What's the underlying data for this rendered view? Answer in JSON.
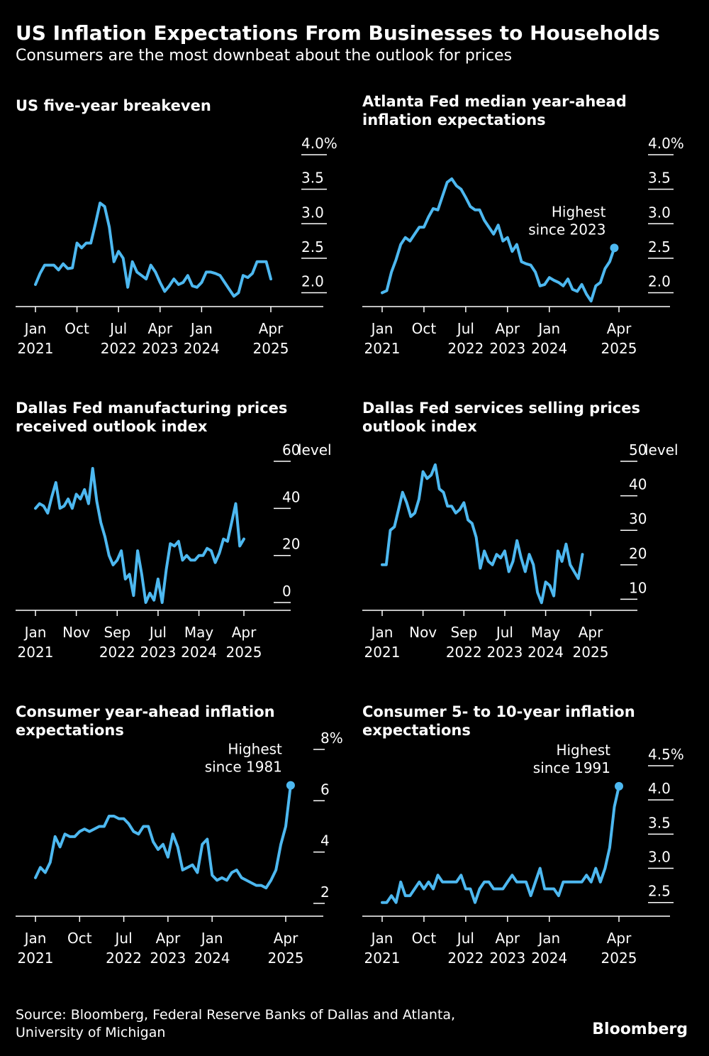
{
  "header": {
    "title": "US Inflation Expectations From Businesses to Households",
    "subtitle": "Consumers are the most downbeat about the outlook for prices"
  },
  "colors": {
    "line": "#4db8f0",
    "background": "#000000",
    "text": "#ffffff",
    "axis": "#ffffff"
  },
  "footer": {
    "source": "Source: Bloomberg, Federal Reserve Banks of Dallas and Atlanta, University of Michigan",
    "logo": "Bloomberg"
  },
  "chart_data": [
    {
      "id": "breakeven",
      "type": "line",
      "title": "US five-year breakeven",
      "ylim": [
        1.8,
        4.0
      ],
      "yticks": [
        {
          "v": 4.0,
          "label": "4.0%"
        },
        {
          "v": 3.5,
          "label": "3.5"
        },
        {
          "v": 3.0,
          "label": "3.0"
        },
        {
          "v": 2.5,
          "label": "2.5"
        },
        {
          "v": 2.0,
          "label": "2.0"
        }
      ],
      "xlim": [
        0,
        51
      ],
      "xticks": [
        {
          "x": 0,
          "label": [
            "Jan",
            "2021"
          ]
        },
        {
          "x": 9,
          "label": [
            "Oct",
            ""
          ]
        },
        {
          "x": 18,
          "label": [
            "Jul",
            "2022"
          ]
        },
        {
          "x": 27,
          "label": [
            "Apr",
            "2023"
          ]
        },
        {
          "x": 36,
          "label": [
            "Jan",
            "2024"
          ]
        },
        {
          "x": 51,
          "label": [
            "Apr",
            "2025"
          ]
        }
      ],
      "values": [
        2.12,
        2.28,
        2.4,
        2.4,
        2.4,
        2.33,
        2.42,
        2.35,
        2.36,
        2.72,
        2.65,
        2.72,
        2.72,
        3.0,
        3.3,
        3.25,
        2.95,
        2.45,
        2.6,
        2.5,
        2.08,
        2.45,
        2.3,
        2.25,
        2.2,
        2.4,
        2.3,
        2.15,
        2.02,
        2.1,
        2.2,
        2.12,
        2.15,
        2.25,
        2.1,
        2.08,
        2.15,
        2.3,
        2.3,
        2.28,
        2.25,
        2.15,
        2.05,
        1.95,
        2.0,
        2.25,
        2.22,
        2.28,
        2.45,
        2.45,
        2.45,
        2.2
      ],
      "highlight": null
    },
    {
      "id": "atlanta",
      "type": "line",
      "title": "Atlanta Fed median year-ahead inflation expectations",
      "ylim": [
        1.8,
        4.0
      ],
      "yticks": [
        {
          "v": 4.0,
          "label": "4.0%"
        },
        {
          "v": 3.5,
          "label": "3.5"
        },
        {
          "v": 3.0,
          "label": "3.0"
        },
        {
          "v": 2.5,
          "label": "2.5"
        },
        {
          "v": 2.0,
          "label": "2.0"
        }
      ],
      "xlim": [
        0,
        51
      ],
      "xticks": [
        {
          "x": 0,
          "label": [
            "Jan",
            "2021"
          ]
        },
        {
          "x": 9,
          "label": [
            "Oct",
            ""
          ]
        },
        {
          "x": 18,
          "label": [
            "Jul",
            "2022"
          ]
        },
        {
          "x": 27,
          "label": [
            "Apr",
            "2023"
          ]
        },
        {
          "x": 36,
          "label": [
            "Jan",
            "2024"
          ]
        },
        {
          "x": 51,
          "label": [
            "Apr",
            "2025"
          ]
        }
      ],
      "values": [
        2.0,
        2.03,
        2.3,
        2.48,
        2.7,
        2.8,
        2.75,
        2.85,
        2.95,
        2.95,
        3.1,
        3.22,
        3.2,
        3.4,
        3.6,
        3.65,
        3.55,
        3.5,
        3.38,
        3.25,
        3.2,
        3.2,
        3.05,
        2.95,
        2.85,
        2.98,
        2.75,
        2.8,
        2.6,
        2.7,
        2.45,
        2.42,
        2.4,
        2.3,
        2.1,
        2.12,
        2.22,
        2.18,
        2.15,
        2.1,
        2.2,
        2.05,
        2.02,
        2.12,
        1.98,
        1.88,
        2.1,
        2.15,
        2.35,
        2.45,
        2.65
      ],
      "highlight": {
        "index": 50,
        "text": [
          "Highest",
          "since 2023"
        ]
      }
    },
    {
      "id": "dallas-mfg",
      "type": "line",
      "title": "Dallas Fed manufacturing prices received outlook index",
      "unit_label": "level",
      "ylim": [
        -3,
        60
      ],
      "yticks": [
        {
          "v": 60,
          "label": "60"
        },
        {
          "v": 40,
          "label": "40"
        },
        {
          "v": 20,
          "label": "20"
        },
        {
          "v": 0,
          "label": "0"
        }
      ],
      "xlim": [
        0,
        51
      ],
      "xticks": [
        {
          "x": 0,
          "label": [
            "Jan",
            "2021"
          ]
        },
        {
          "x": 10,
          "label": [
            "Nov",
            ""
          ]
        },
        {
          "x": 20,
          "label": [
            "Sep",
            "2022"
          ]
        },
        {
          "x": 30,
          "label": [
            "Jul",
            "2023"
          ]
        },
        {
          "x": 40,
          "label": [
            "May",
            "2024"
          ]
        },
        {
          "x": 51,
          "label": [
            "Apr",
            "2025"
          ]
        }
      ],
      "values": [
        40,
        42,
        41,
        38,
        45,
        51,
        40,
        41,
        44,
        40,
        46,
        44,
        48,
        42,
        57,
        43,
        34,
        28,
        20,
        16,
        18,
        22,
        10,
        12,
        3,
        22,
        12,
        0,
        4,
        1,
        10,
        0,
        14,
        25,
        24,
        26,
        18,
        20,
        18,
        18,
        20,
        20,
        23,
        22,
        17,
        21,
        27,
        26,
        34,
        42,
        24,
        27
      ],
      "highlight": null
    },
    {
      "id": "dallas-svc",
      "type": "line",
      "title": "Dallas Fed services selling prices outlook index",
      "unit_label": "level",
      "ylim": [
        7,
        50
      ],
      "yticks": [
        {
          "v": 50,
          "label": "50"
        },
        {
          "v": 40,
          "label": "40"
        },
        {
          "v": 30,
          "label": "30"
        },
        {
          "v": 20,
          "label": "20"
        },
        {
          "v": 10,
          "label": "10"
        }
      ],
      "xlim": [
        0,
        51
      ],
      "xticks": [
        {
          "x": 0,
          "label": [
            "Jan",
            "2021"
          ]
        },
        {
          "x": 10,
          "label": [
            "Nov",
            ""
          ]
        },
        {
          "x": 20,
          "label": [
            "Sep",
            "2022"
          ]
        },
        {
          "x": 30,
          "label": [
            "Jul",
            "2023"
          ]
        },
        {
          "x": 40,
          "label": [
            "May",
            "2024"
          ]
        },
        {
          "x": 51,
          "label": [
            "Apr",
            "2025"
          ]
        }
      ],
      "values": [
        20,
        20,
        30,
        31,
        36,
        41,
        38,
        34,
        35,
        39,
        47,
        45,
        46,
        49,
        42,
        41,
        37,
        37,
        35,
        36,
        38,
        33,
        32,
        28,
        19,
        24,
        21,
        20,
        23,
        22,
        24,
        18,
        21,
        27,
        22,
        18,
        23,
        20,
        12,
        9,
        15,
        14,
        11,
        24,
        21,
        26,
        20,
        18,
        16,
        23
      ],
      "highlight": null
    },
    {
      "id": "consumer-1y",
      "type": "line",
      "title": "Consumer year-ahead inflation expectations",
      "ylim": [
        1.5,
        8.0
      ],
      "yticks": [
        {
          "v": 8,
          "label": "8%"
        },
        {
          "v": 6,
          "label": "6"
        },
        {
          "v": 4,
          "label": "4"
        },
        {
          "v": 2,
          "label": "2"
        }
      ],
      "xlim": [
        0,
        51
      ],
      "xticks": [
        {
          "x": 0,
          "label": [
            "Jan",
            "2021"
          ]
        },
        {
          "x": 9,
          "label": [
            "Oct",
            ""
          ]
        },
        {
          "x": 18,
          "label": [
            "Jul",
            "2022"
          ]
        },
        {
          "x": 27,
          "label": [
            "Apr",
            "2023"
          ]
        },
        {
          "x": 36,
          "label": [
            "Jan",
            "2024"
          ]
        },
        {
          "x": 51,
          "label": [
            "Apr",
            "2025"
          ]
        }
      ],
      "values": [
        3.0,
        3.4,
        3.2,
        3.6,
        4.6,
        4.2,
        4.7,
        4.6,
        4.6,
        4.8,
        4.9,
        4.8,
        4.9,
        5.0,
        5.0,
        5.4,
        5.4,
        5.3,
        5.3,
        5.1,
        4.8,
        4.7,
        5.0,
        5.0,
        4.4,
        4.1,
        4.3,
        3.8,
        4.7,
        4.2,
        3.3,
        3.4,
        3.5,
        3.2,
        4.3,
        4.5,
        3.1,
        2.9,
        3.0,
        2.9,
        3.2,
        3.3,
        3.0,
        2.9,
        2.8,
        2.7,
        2.7,
        2.6,
        2.9,
        3.3,
        4.3,
        5.0,
        6.6
      ],
      "highlight": {
        "index": 52,
        "text": [
          "Highest",
          "since 1981"
        ]
      }
    },
    {
      "id": "consumer-5y",
      "type": "line",
      "title": "Consumer 5- to 10-year inflation expectations",
      "ylim": [
        2.3,
        4.5
      ],
      "yticks": [
        {
          "v": 4.5,
          "label": "4.5%"
        },
        {
          "v": 4.0,
          "label": "4.0"
        },
        {
          "v": 3.5,
          "label": "3.5"
        },
        {
          "v": 3.0,
          "label": "3.0"
        },
        {
          "v": 2.5,
          "label": "2.5"
        }
      ],
      "xlim": [
        0,
        51
      ],
      "xticks": [
        {
          "x": 0,
          "label": [
            "Jan",
            "2021"
          ]
        },
        {
          "x": 9,
          "label": [
            "Oct",
            ""
          ]
        },
        {
          "x": 18,
          "label": [
            "Jul",
            "2022"
          ]
        },
        {
          "x": 27,
          "label": [
            "Apr",
            "2023"
          ]
        },
        {
          "x": 36,
          "label": [
            "Jan",
            "2024"
          ]
        },
        {
          "x": 51,
          "label": [
            "Apr",
            "2025"
          ]
        }
      ],
      "values": [
        2.5,
        2.5,
        2.6,
        2.5,
        2.8,
        2.6,
        2.6,
        2.7,
        2.8,
        2.7,
        2.8,
        2.7,
        2.9,
        2.8,
        2.8,
        2.8,
        2.8,
        2.9,
        2.7,
        2.7,
        2.5,
        2.7,
        2.8,
        2.8,
        2.7,
        2.7,
        2.7,
        2.8,
        2.9,
        2.8,
        2.8,
        2.8,
        2.6,
        2.8,
        3.0,
        2.7,
        2.7,
        2.7,
        2.6,
        2.8,
        2.8,
        2.8,
        2.8,
        2.8,
        2.9,
        2.8,
        3.0,
        2.8,
        3.0,
        3.3,
        3.9,
        4.2
      ],
      "highlight": {
        "index": 51,
        "text": [
          "Highest",
          "since 1991"
        ]
      }
    }
  ]
}
